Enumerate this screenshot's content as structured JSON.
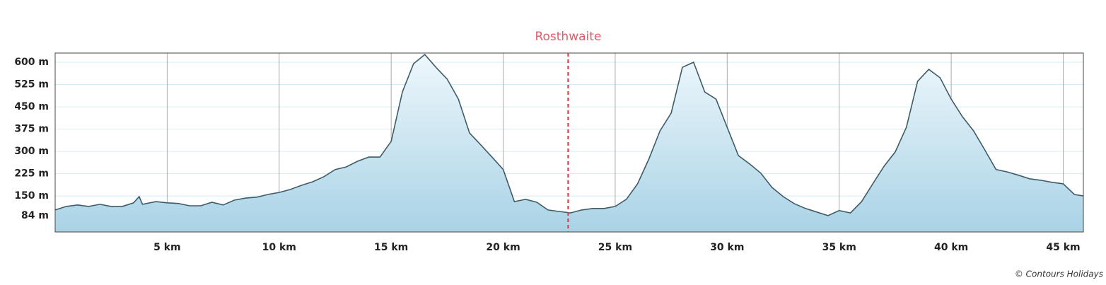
{
  "chart_data": {
    "type": "area",
    "x": [
      0,
      0.5,
      1,
      1.5,
      2,
      2.5,
      3,
      3.5,
      3.75,
      3.9,
      4.5,
      5,
      5.5,
      6,
      6.5,
      7,
      7.5,
      8,
      8.5,
      9,
      9.5,
      10,
      10.5,
      11,
      11.5,
      12,
      12.5,
      13,
      13.5,
      14,
      14.5,
      15,
      15.5,
      16,
      16.5,
      17,
      17.5,
      18,
      18.5,
      19,
      19.5,
      20,
      20.5,
      21,
      21.5,
      22,
      22.5,
      23,
      23.5,
      24,
      24.5,
      25,
      25.5,
      26,
      26.5,
      27,
      27.5,
      28,
      28.5,
      29,
      29.5,
      30,
      30.5,
      31,
      31.5,
      32,
      32.5,
      33,
      33.5,
      34,
      34.5,
      35,
      35.5,
      36,
      36.5,
      37,
      37.5,
      38,
      38.5,
      39,
      39.5,
      40,
      40.5,
      41,
      41.5,
      42,
      42.5,
      43,
      43.5,
      44,
      44.5,
      45,
      45.5,
      45.9
    ],
    "values": [
      103,
      115,
      120,
      115,
      122,
      115,
      115,
      127,
      148,
      122,
      131,
      127,
      125,
      117,
      117,
      129,
      120,
      136,
      143,
      146,
      155,
      162,
      172,
      186,
      198,
      215,
      239,
      248,
      267,
      281,
      281,
      334,
      500,
      595,
      626,
      583,
      543,
      476,
      362,
      322,
      281,
      239,
      131,
      139,
      129,
      103,
      98,
      93,
      103,
      108,
      108,
      115,
      139,
      191,
      274,
      369,
      429,
      583,
      600,
      500,
      476,
      381,
      286,
      258,
      227,
      179,
      148,
      124,
      108,
      96,
      84,
      101,
      93,
      131,
      191,
      250,
      298,
      381,
      536,
      576,
      548,
      476,
      417,
      369,
      305,
      239,
      231,
      220,
      208,
      203,
      196,
      191,
      155,
      150
    ],
    "color": "#3e5c68",
    "fill": "#a9d3e6",
    "xlim": [
      0,
      45.9
    ],
    "ylim": [
      29,
      631
    ],
    "xticks": [
      {
        "value": 5,
        "label": "5 km"
      },
      {
        "value": 10,
        "label": "10 km"
      },
      {
        "value": 15,
        "label": "15 km"
      },
      {
        "value": 20,
        "label": "20 km"
      },
      {
        "value": 25,
        "label": "25 km"
      },
      {
        "value": 30,
        "label": "30 km"
      },
      {
        "value": 35,
        "label": "35 km"
      },
      {
        "value": 40,
        "label": "40 km"
      },
      {
        "value": 45,
        "label": "45 km"
      }
    ],
    "yticks": [
      {
        "value": 84,
        "label": "84 m"
      },
      {
        "value": 150,
        "label": "150 m"
      },
      {
        "value": 225,
        "label": "225 m"
      },
      {
        "value": 300,
        "label": "300 m"
      },
      {
        "value": 375,
        "label": "375 m"
      },
      {
        "value": 450,
        "label": "450 m"
      },
      {
        "value": 525,
        "label": "525 m"
      },
      {
        "value": 600,
        "label": "600 m"
      }
    ],
    "grid": true,
    "annotation": {
      "x": 22.9,
      "label": "Rosthwaite",
      "color": "#d9414f"
    },
    "credit": "© Contours Holidays"
  }
}
